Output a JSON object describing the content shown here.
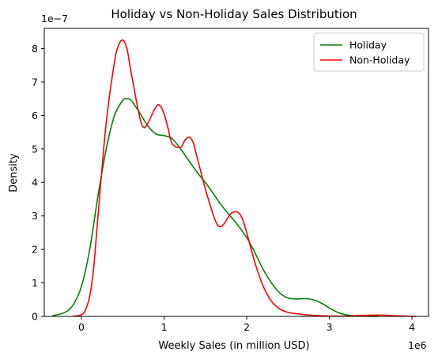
{
  "chart_data": {
    "type": "line",
    "title": "Holiday vs Non-Holiday Sales Distribution",
    "xlabel": "Weekly Sales (in million USD)",
    "ylabel": "Density",
    "x_scale_label": "1e6",
    "y_scale_label": "1e−7",
    "xlim": [
      -0.45,
      4.2
    ],
    "ylim": [
      0,
      8.6
    ],
    "xticks": [
      0,
      1,
      2,
      3,
      4
    ],
    "yticks": [
      0,
      1,
      2,
      3,
      4,
      5,
      6,
      7,
      8
    ],
    "legend_position": "top-right",
    "grid": false,
    "series": [
      {
        "name": "Holiday",
        "color": "#008000",
        "x": [
          -0.35,
          -0.2,
          -0.1,
          0.0,
          0.1,
          0.2,
          0.3,
          0.4,
          0.5,
          0.55,
          0.6,
          0.7,
          0.8,
          0.9,
          1.0,
          1.1,
          1.2,
          1.3,
          1.4,
          1.5,
          1.6,
          1.7,
          1.8,
          1.9,
          2.0,
          2.1,
          2.2,
          2.3,
          2.4,
          2.5,
          2.6,
          2.7,
          2.8,
          2.9,
          3.0,
          3.1,
          3.2,
          3.3,
          3.4,
          3.5,
          3.6
        ],
        "y": [
          0.02,
          0.12,
          0.35,
          0.9,
          2.0,
          3.6,
          5.0,
          6.0,
          6.45,
          6.5,
          6.45,
          6.1,
          5.7,
          5.45,
          5.4,
          5.3,
          5.0,
          4.65,
          4.3,
          4.0,
          3.65,
          3.3,
          3.0,
          2.7,
          2.35,
          1.9,
          1.4,
          1.0,
          0.7,
          0.55,
          0.52,
          0.53,
          0.5,
          0.4,
          0.25,
          0.12,
          0.05,
          0.02,
          0.01,
          0.0,
          0.0
        ]
      },
      {
        "name": "Non-Holiday",
        "color": "#ff0000",
        "x": [
          -0.1,
          0.0,
          0.05,
          0.1,
          0.15,
          0.2,
          0.3,
          0.4,
          0.45,
          0.5,
          0.55,
          0.6,
          0.7,
          0.75,
          0.8,
          0.9,
          0.95,
          1.0,
          1.05,
          1.1,
          1.2,
          1.25,
          1.3,
          1.35,
          1.4,
          1.5,
          1.6,
          1.65,
          1.7,
          1.75,
          1.8,
          1.85,
          1.9,
          1.95,
          2.0,
          2.1,
          2.2,
          2.3,
          2.4,
          2.5,
          2.6,
          2.7,
          2.8,
          2.9,
          3.0,
          3.2,
          3.4,
          3.6,
          3.8,
          4.05
        ],
        "y": [
          0.0,
          0.05,
          0.2,
          0.6,
          1.5,
          3.0,
          5.8,
          7.6,
          8.1,
          8.25,
          8.0,
          7.3,
          6.0,
          5.65,
          5.75,
          6.25,
          6.3,
          6.05,
          5.6,
          5.15,
          5.05,
          5.25,
          5.35,
          5.2,
          4.75,
          3.8,
          3.0,
          2.72,
          2.7,
          2.85,
          3.05,
          3.12,
          3.1,
          2.9,
          2.5,
          1.6,
          0.9,
          0.45,
          0.22,
          0.12,
          0.08,
          0.05,
          0.03,
          0.02,
          0.01,
          0.01,
          0.03,
          0.04,
          0.02,
          0.0
        ]
      }
    ]
  }
}
